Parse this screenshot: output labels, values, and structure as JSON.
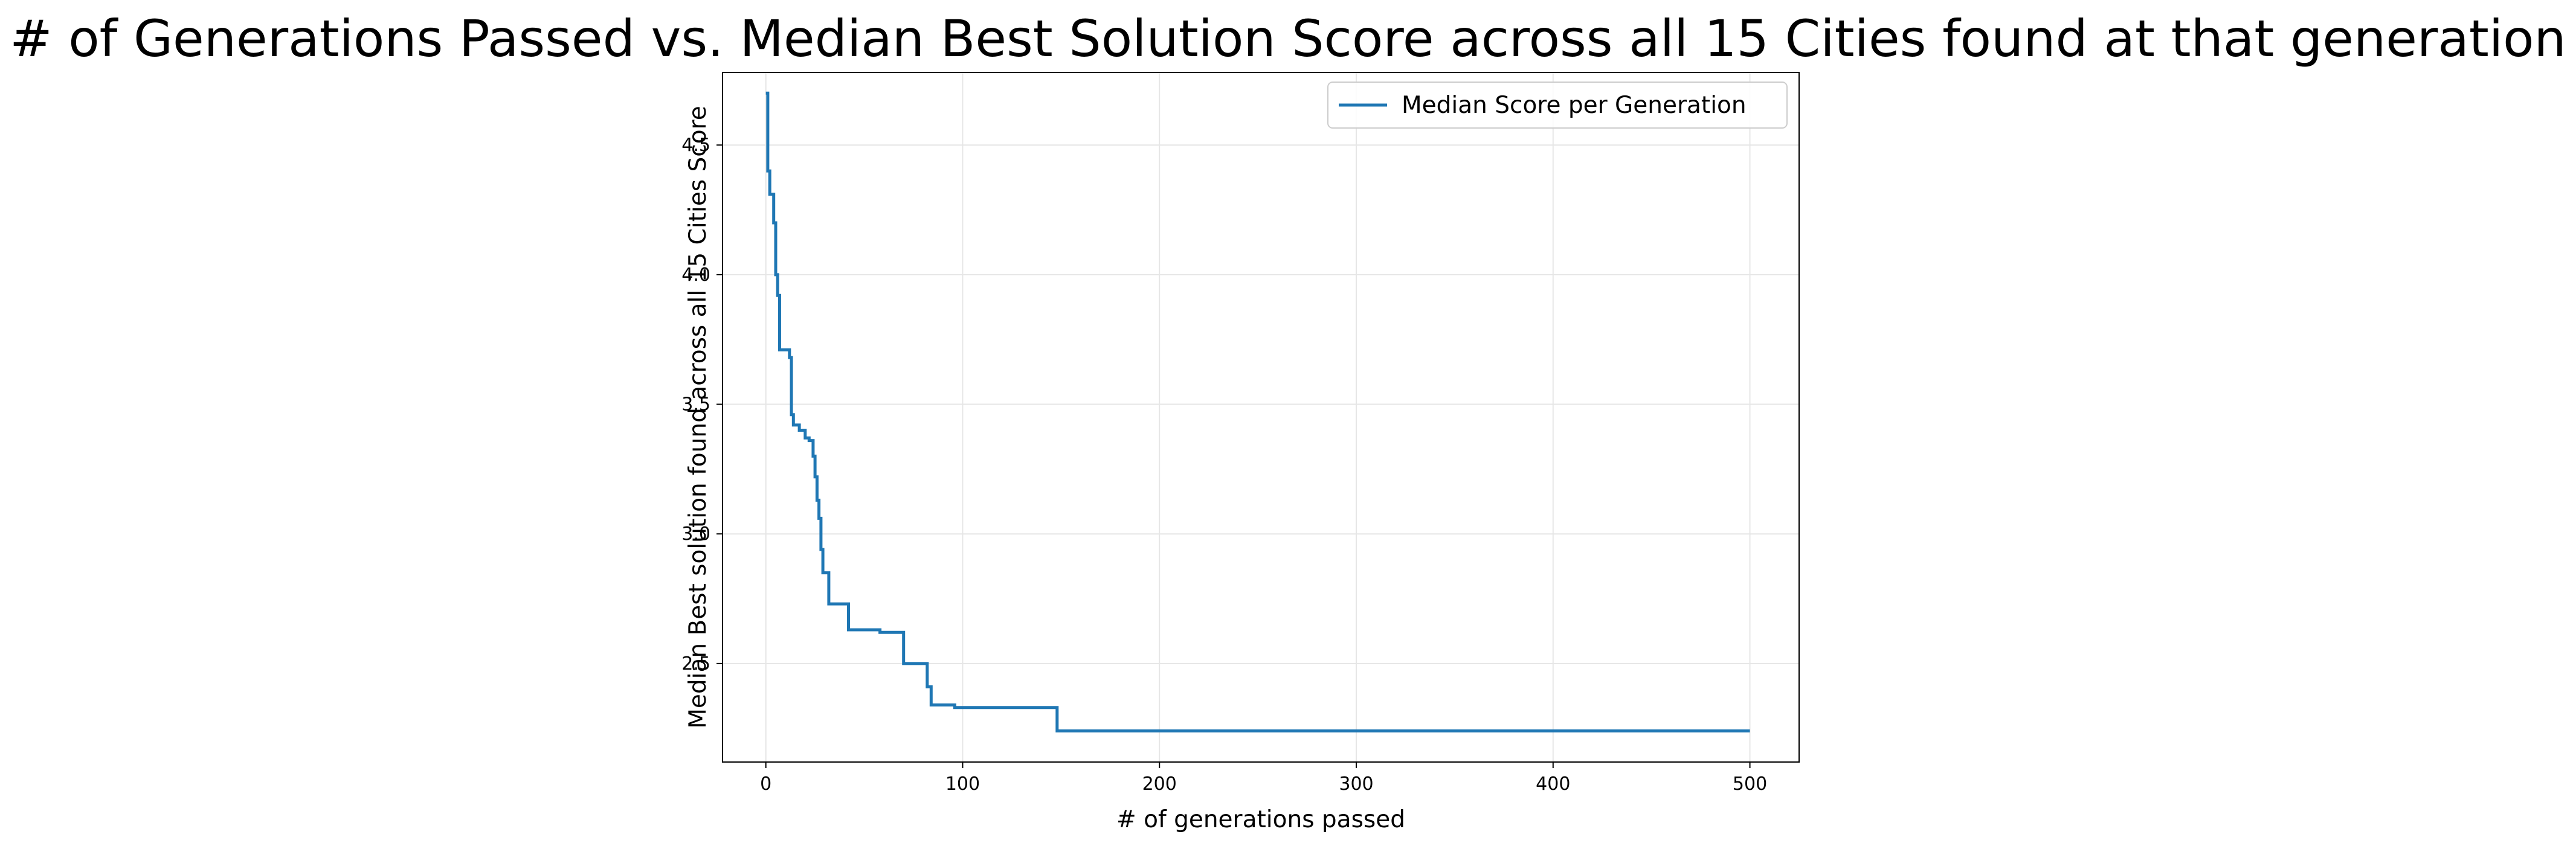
{
  "chart_data": {
    "type": "line",
    "title": "# of Generations Passed vs. Median Best Solution Score across all 15 Cities found at that generation",
    "xlabel": "# of generations passed",
    "ylabel": "Median Best solution found across all 15 Cities Score",
    "xlim": [
      -22,
      525
    ],
    "ylim": [
      2.12,
      4.78
    ],
    "xticks": [
      0,
      100,
      200,
      300,
      400,
      500
    ],
    "xtick_labels": [
      "0",
      "100",
      "200",
      "300",
      "400",
      "500"
    ],
    "yticks": [
      2.5,
      3.0,
      3.5,
      4.0,
      4.5
    ],
    "ytick_labels": [
      "2.5",
      "3.0",
      "3.5",
      "4.0",
      "4.5"
    ],
    "grid": true,
    "legend_position": "top-right",
    "series": [
      {
        "name": "Median Score per Generation",
        "color": "#1f77b4",
        "step": "post",
        "x": [
          0,
          1,
          2,
          4,
          5,
          6,
          7,
          12,
          13,
          14,
          17,
          20,
          22,
          24,
          25,
          26,
          27,
          28,
          29,
          30,
          32,
          36,
          42,
          58,
          70,
          74,
          82,
          84,
          96,
          148,
          500
        ],
        "y": [
          4.7,
          4.4,
          4.31,
          4.2,
          4.0,
          3.92,
          3.71,
          3.68,
          3.46,
          3.42,
          3.4,
          3.37,
          3.36,
          3.3,
          3.22,
          3.13,
          3.06,
          2.94,
          2.85,
          2.85,
          2.73,
          2.73,
          2.63,
          2.62,
          2.5,
          2.5,
          2.41,
          2.34,
          2.33,
          2.24,
          2.24
        ]
      }
    ]
  }
}
